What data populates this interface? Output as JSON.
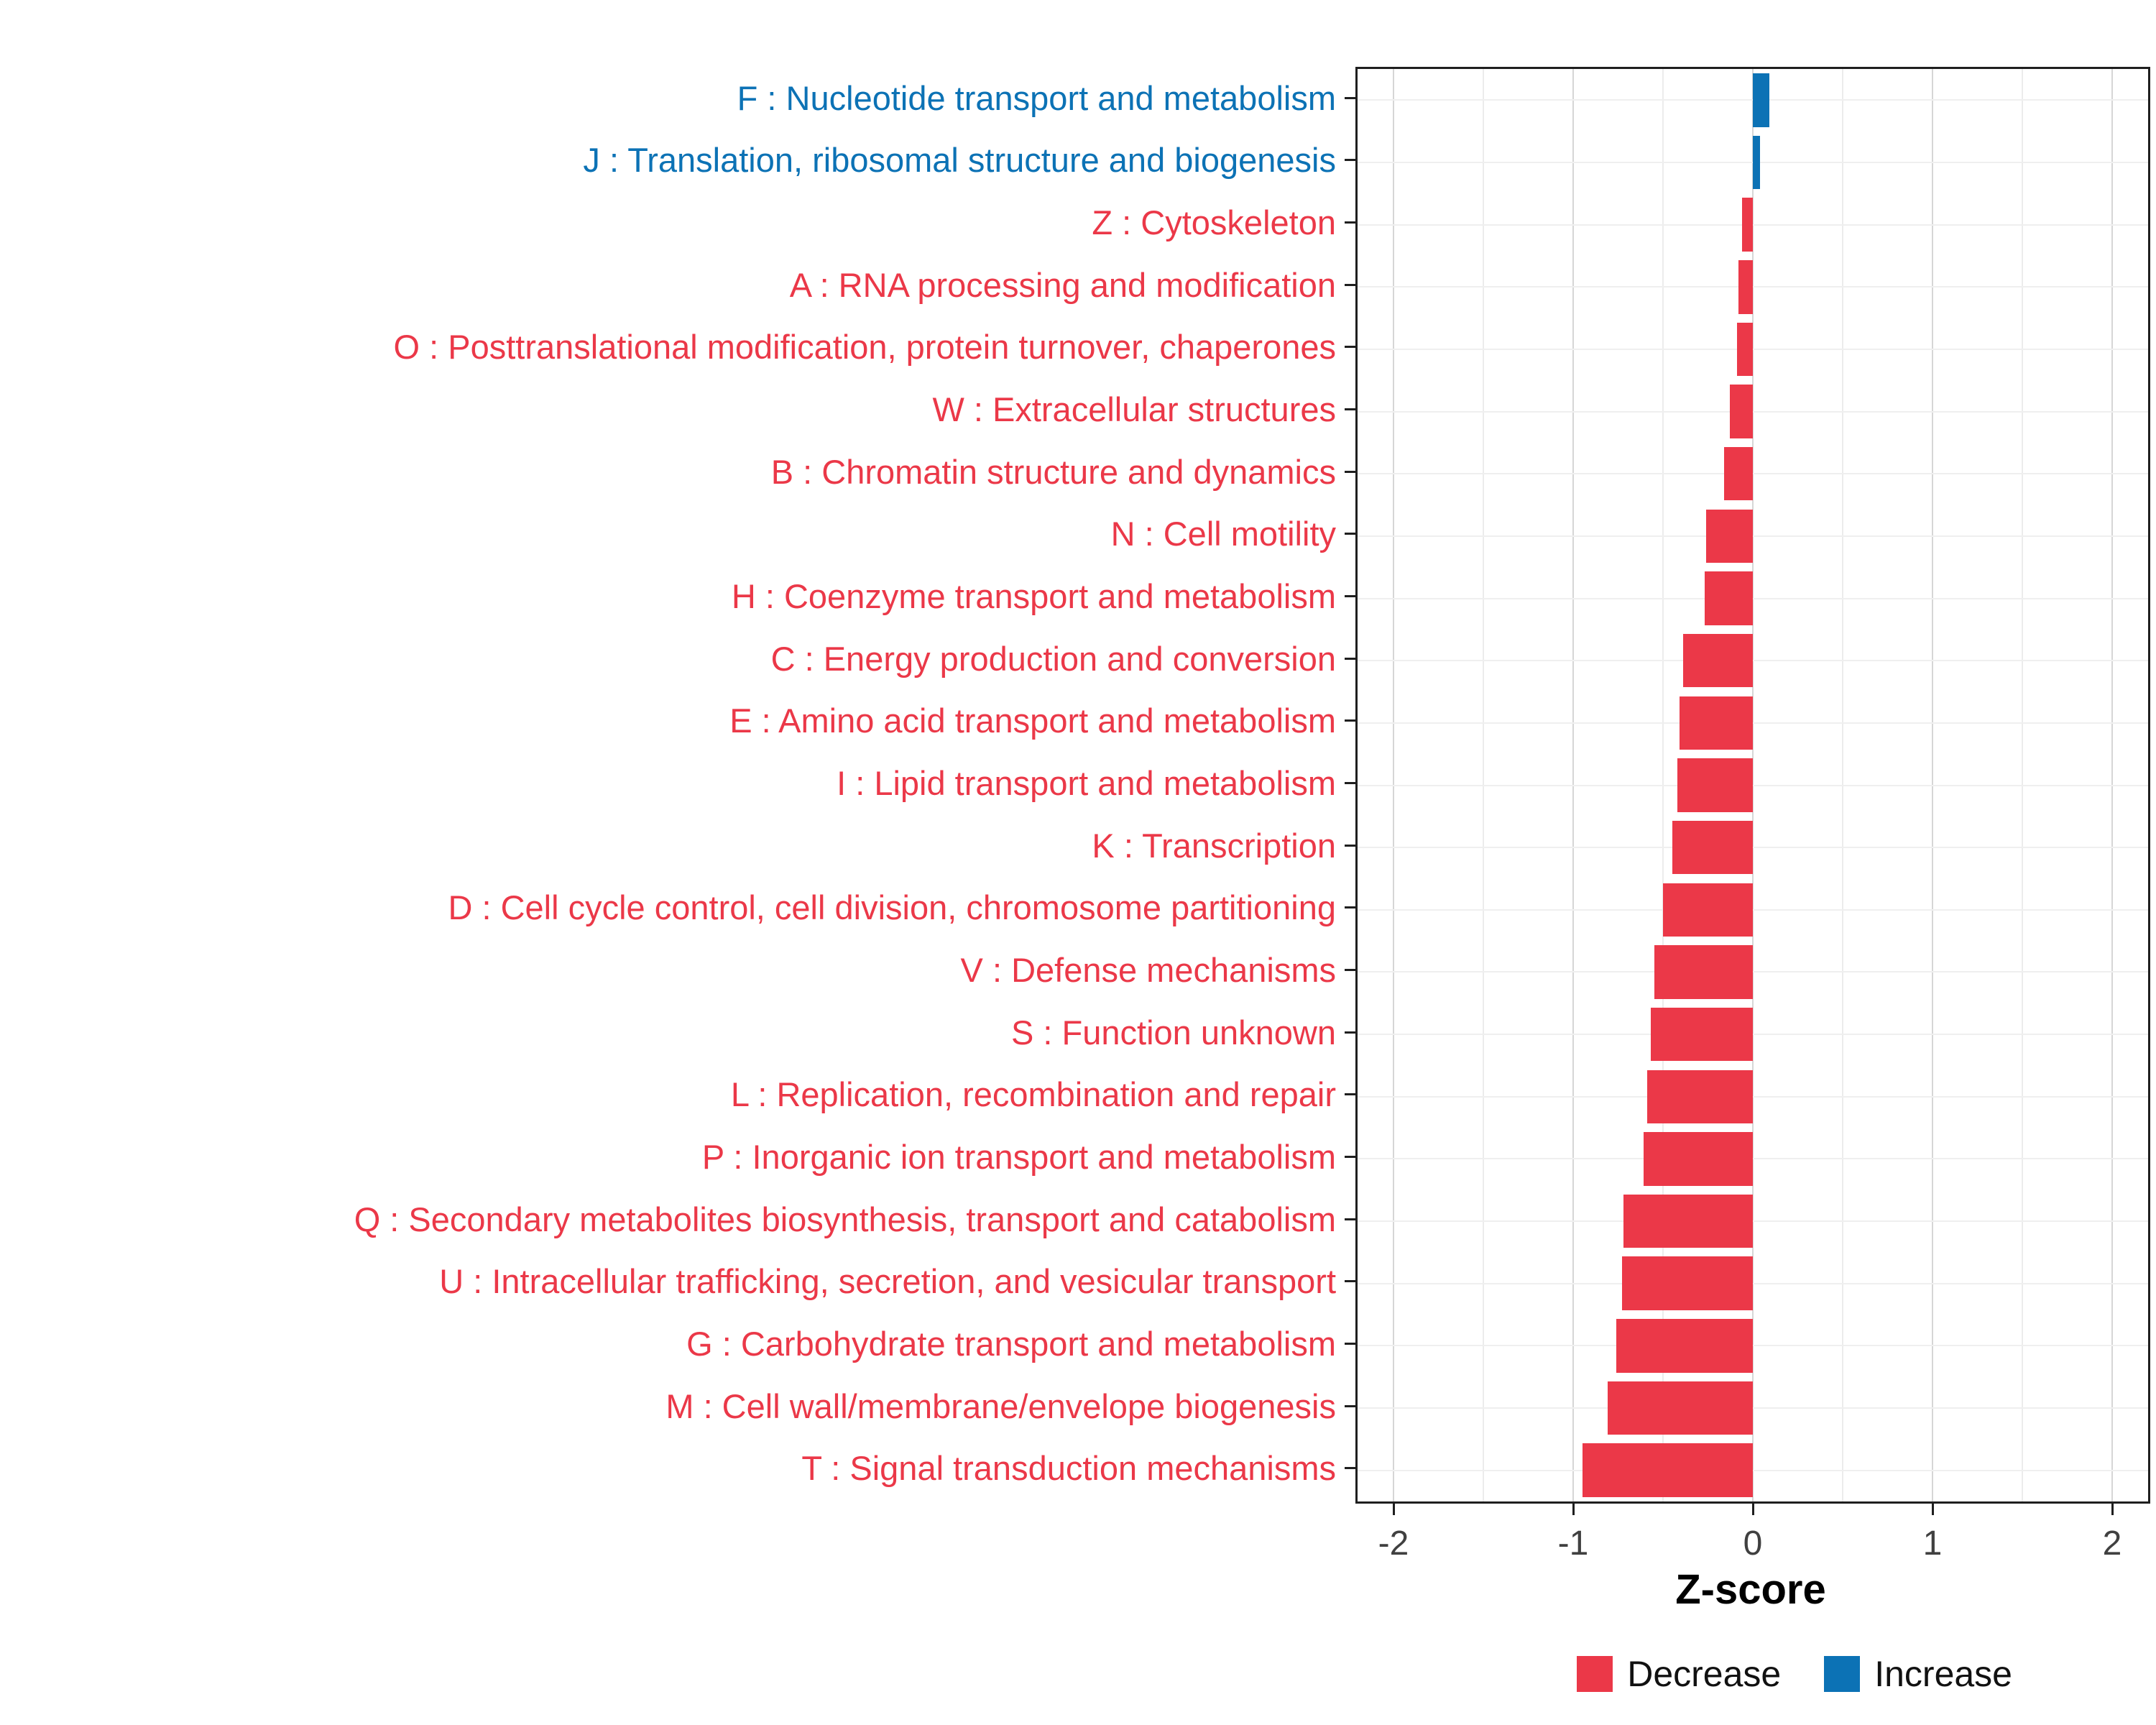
{
  "chart_data": {
    "type": "bar",
    "orientation": "horizontal",
    "title": "",
    "xlabel": "Z-score",
    "ylabel": "",
    "xlim": [
      -2.2,
      2.2
    ],
    "x_ticks": [
      -2,
      -1,
      0,
      1,
      2
    ],
    "grid": true,
    "legend_position": "bottom-right",
    "colors": {
      "decrease": "#EB3848",
      "increase": "#0C72B5"
    },
    "legend": [
      {
        "label": "Decrease",
        "key": "decrease"
      },
      {
        "label": "Increase",
        "key": "increase"
      }
    ],
    "categories": [
      "F : Nucleotide transport and metabolism",
      "J : Translation, ribosomal structure and biogenesis",
      "Z : Cytoskeleton",
      "A : RNA processing and modification",
      "O : Posttranslational modification, protein turnover, chaperones",
      "W : Extracellular structures",
      "B : Chromatin structure and dynamics",
      "N : Cell motility",
      "H : Coenzyme transport and metabolism",
      "C : Energy production and conversion",
      "E : Amino acid transport and metabolism",
      "I : Lipid transport and metabolism",
      "K : Transcription",
      "D : Cell cycle control, cell division, chromosome partitioning",
      "V : Defense mechanisms",
      "S : Function unknown",
      "L : Replication, recombination and repair",
      "P : Inorganic ion transport and metabolism",
      "Q : Secondary metabolites biosynthesis, transport and catabolism",
      "U : Intracellular trafficking, secretion, and vesicular transport",
      "G : Carbohydrate transport and metabolism",
      "M : Cell wall/membrane/envelope biogenesis",
      "T : Signal transduction mechanisms"
    ],
    "values": [
      0.09,
      0.04,
      -0.06,
      -0.08,
      -0.09,
      -0.13,
      -0.16,
      -0.26,
      -0.27,
      -0.39,
      -0.41,
      -0.42,
      -0.45,
      -0.5,
      -0.55,
      -0.57,
      -0.59,
      -0.61,
      -0.72,
      -0.73,
      -0.76,
      -0.81,
      -0.95
    ],
    "directions": [
      "increase",
      "increase",
      "decrease",
      "decrease",
      "decrease",
      "decrease",
      "decrease",
      "decrease",
      "decrease",
      "decrease",
      "decrease",
      "decrease",
      "decrease",
      "decrease",
      "decrease",
      "decrease",
      "decrease",
      "decrease",
      "decrease",
      "decrease",
      "decrease",
      "decrease",
      "decrease"
    ]
  }
}
